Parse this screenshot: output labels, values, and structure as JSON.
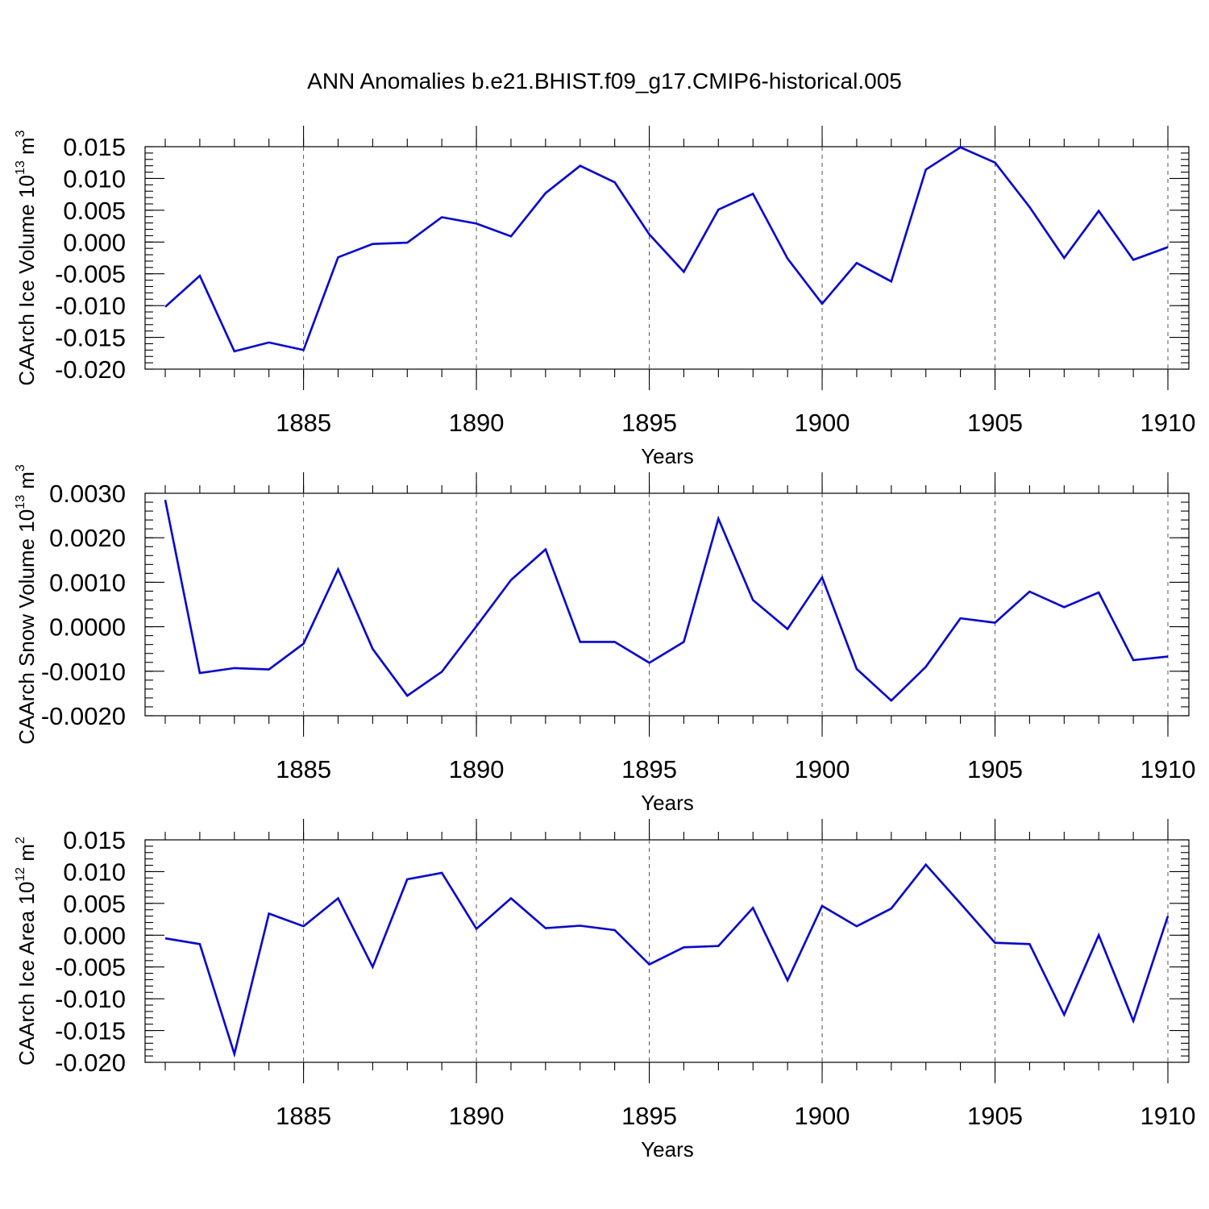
{
  "title": "ANN Anomalies b.e21.BHIST.f09_g17.CMIP6-historical.005",
  "chart_data": [
    {
      "type": "line",
      "xlabel": "Years",
      "ylabel_main": "CAArch Ice Volume 10",
      "ylabel_exp": "13",
      "ylabel_unit": " m",
      "ylabel_unit_exp": "3",
      "xlim": [
        1881,
        1910
      ],
      "ylim": [
        -0.02,
        0.015
      ],
      "x_ticks": [
        1885,
        1890,
        1895,
        1900,
        1905,
        1910
      ],
      "y_ticks": [
        "-0.020",
        "-0.015",
        "-0.010",
        "-0.005",
        "0.000",
        "0.005",
        "0.010",
        "0.015"
      ],
      "grid": "vertical dashed at major x ticks",
      "x": [
        1881,
        1882,
        1883,
        1884,
        1885,
        1886,
        1887,
        1888,
        1889,
        1890,
        1891,
        1892,
        1893,
        1894,
        1895,
        1896,
        1897,
        1898,
        1899,
        1900,
        1901,
        1902,
        1903,
        1904,
        1905,
        1906,
        1907,
        1908,
        1909,
        1910
      ],
      "y": [
        -0.0102,
        -0.0053,
        -0.0172,
        -0.0158,
        -0.017,
        -0.0024,
        -0.0003,
        -0.0001,
        0.0039,
        0.0029,
        0.0009,
        0.0077,
        0.012,
        0.0094,
        0.0012,
        -0.0047,
        0.0051,
        0.0076,
        -0.0026,
        -0.0097,
        -0.0033,
        -0.0062,
        0.0114,
        0.0149,
        0.0125,
        0.0055,
        -0.0025,
        0.0049,
        -0.0028,
        -0.0008
      ]
    },
    {
      "type": "line",
      "xlabel": "Years",
      "ylabel_main": "CAArch Snow Volume 10",
      "ylabel_exp": "13",
      "ylabel_unit": " m",
      "ylabel_unit_exp": "3",
      "xlim": [
        1881,
        1910
      ],
      "ylim": [
        -0.002,
        0.003
      ],
      "x_ticks": [
        1885,
        1890,
        1895,
        1900,
        1905,
        1910
      ],
      "y_ticks": [
        "-0.0020",
        "-0.0010",
        "0.0000",
        "0.0010",
        "0.0020",
        "0.0030"
      ],
      "grid": "vertical dashed at major x ticks",
      "x": [
        1881,
        1882,
        1883,
        1884,
        1885,
        1886,
        1887,
        1888,
        1889,
        1890,
        1891,
        1892,
        1893,
        1894,
        1895,
        1896,
        1897,
        1898,
        1899,
        1900,
        1901,
        1902,
        1903,
        1904,
        1905,
        1906,
        1907,
        1908,
        1909,
        1910
      ],
      "y": [
        0.00285,
        -0.00104,
        -0.00093,
        -0.00096,
        -0.00038,
        0.00129,
        -0.0005,
        -0.00155,
        -0.00101,
        1e-05,
        0.00105,
        0.00174,
        -0.00034,
        -0.00034,
        -0.00081,
        -0.00034,
        0.00243,
        0.0006,
        -5e-05,
        0.00111,
        -0.00095,
        -0.00166,
        -0.0009,
        0.00019,
        9e-05,
        0.00079,
        0.00044,
        0.00077,
        -0.00075,
        -0.00067
      ]
    },
    {
      "type": "line",
      "xlabel": "Years",
      "ylabel_main": "CAArch Ice Area 10",
      "ylabel_exp": "12",
      "ylabel_unit": " m",
      "ylabel_unit_exp": "2",
      "xlim": [
        1881,
        1910
      ],
      "ylim": [
        -0.02,
        0.015
      ],
      "x_ticks": [
        1885,
        1890,
        1895,
        1900,
        1905,
        1910
      ],
      "y_ticks": [
        "-0.020",
        "-0.015",
        "-0.010",
        "-0.005",
        "0.000",
        "0.005",
        "0.010",
        "0.015"
      ],
      "grid": "vertical dashed at major x ticks",
      "x": [
        1881,
        1882,
        1883,
        1884,
        1885,
        1886,
        1887,
        1888,
        1889,
        1890,
        1891,
        1892,
        1893,
        1894,
        1895,
        1896,
        1897,
        1898,
        1899,
        1900,
        1901,
        1902,
        1903,
        1904,
        1905,
        1906,
        1907,
        1908,
        1909,
        1910
      ],
      "y": [
        -0.0005,
        -0.0014,
        -0.0187,
        0.0034,
        0.0014,
        0.0058,
        -0.005,
        0.0088,
        0.0098,
        0.001,
        0.0058,
        0.0011,
        0.0015,
        0.0008,
        -0.0046,
        -0.0019,
        -0.0017,
        0.0043,
        -0.0071,
        0.0046,
        0.0014,
        0.0042,
        0.0111,
        0.005,
        -0.0012,
        -0.0014,
        -0.0125,
        0.0,
        -0.0135,
        0.003
      ]
    }
  ]
}
